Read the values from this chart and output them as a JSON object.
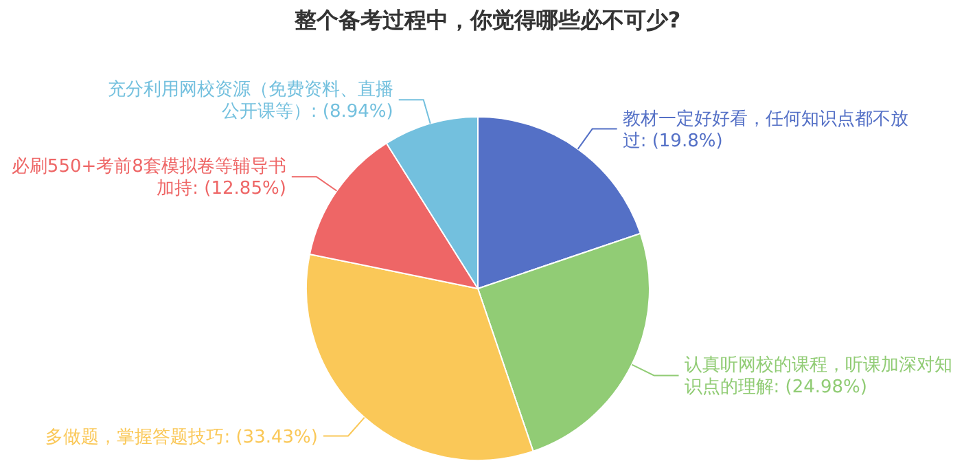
{
  "chart_data": {
    "type": "pie",
    "title": "整个备考过程中，你觉得哪些必不可少?",
    "categories": [
      "教材一定好好看，任何知识点都不放过",
      "认真听网校的课程，听课加深对知识点的理解",
      "多做题，掌握答题技巧",
      "必刷550+考前8套模拟卷等辅导书加持",
      "充分利用网校资源（免费资料、直播公开课等）"
    ],
    "values": [
      19.8,
      24.98,
      33.43,
      12.85,
      8.94
    ],
    "value_labels": [
      "(19.8%)",
      "(24.98%)",
      "(33.43%)",
      "(12.85%)",
      "(8.94%)"
    ],
    "colors": [
      "#5470c6",
      "#91cc75",
      "#fac858",
      "#ee6666",
      "#73c0de"
    ]
  }
}
